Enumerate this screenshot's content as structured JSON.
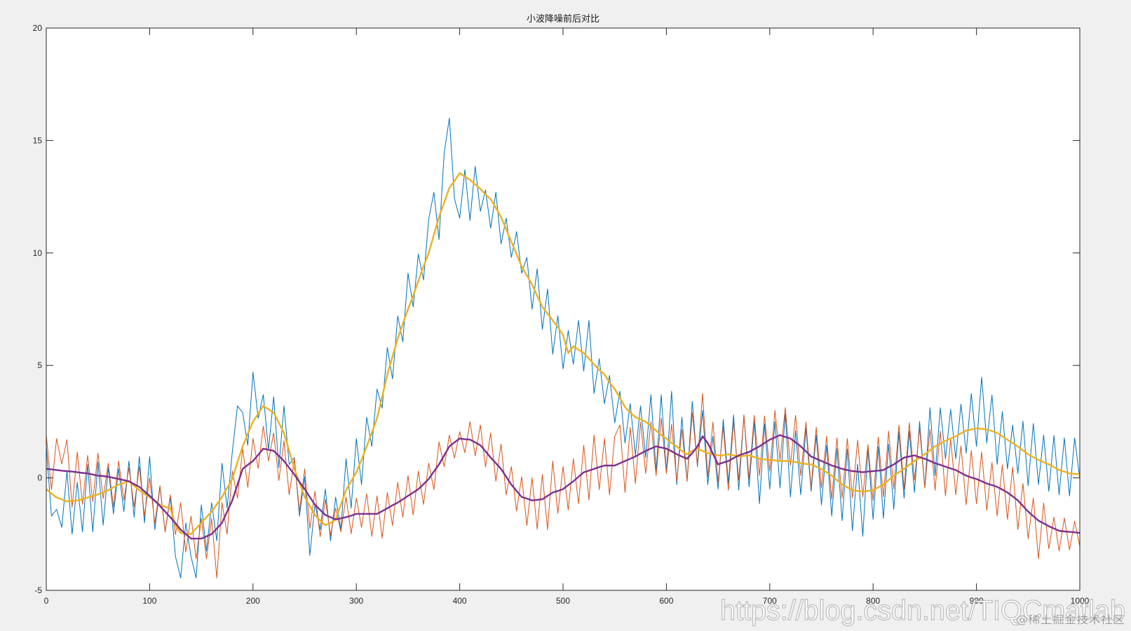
{
  "chart_data": {
    "type": "line",
    "title": "小波降噪前后对比",
    "xlabel": "",
    "ylabel": "",
    "xlim": [
      0,
      1000
    ],
    "ylim": [
      -5,
      20
    ],
    "grid": false,
    "xticks": [
      0,
      100,
      200,
      300,
      400,
      500,
      600,
      700,
      800,
      900,
      1000
    ],
    "xtick_labels": [
      "0",
      "100",
      "200",
      "300",
      "400",
      "500",
      "600",
      "700",
      "800",
      "900",
      "1000"
    ],
    "yticks": [
      -5,
      0,
      5,
      10,
      15,
      20
    ],
    "ytick_labels": [
      "-5",
      "0",
      "5",
      "10",
      "15",
      "20"
    ],
    "x": [
      0,
      5,
      10,
      15,
      20,
      25,
      30,
      35,
      40,
      45,
      50,
      55,
      60,
      65,
      70,
      75,
      80,
      85,
      90,
      95,
      100,
      105,
      110,
      115,
      120,
      125,
      130,
      135,
      140,
      145,
      150,
      155,
      160,
      165,
      170,
      175,
      180,
      185,
      190,
      195,
      200,
      205,
      210,
      215,
      220,
      225,
      230,
      235,
      240,
      245,
      250,
      255,
      260,
      265,
      270,
      275,
      280,
      285,
      290,
      295,
      300,
      305,
      310,
      315,
      320,
      325,
      330,
      335,
      340,
      345,
      350,
      355,
      360,
      365,
      370,
      375,
      380,
      385,
      390,
      395,
      400,
      405,
      410,
      415,
      420,
      425,
      430,
      435,
      440,
      445,
      450,
      455,
      460,
      465,
      470,
      475,
      480,
      485,
      490,
      495,
      500,
      505,
      510,
      515,
      520,
      525,
      530,
      535,
      540,
      545,
      550,
      555,
      560,
      565,
      570,
      575,
      580,
      585,
      590,
      595,
      600,
      605,
      610,
      615,
      620,
      625,
      630,
      635,
      640,
      645,
      650,
      655,
      660,
      665,
      670,
      675,
      680,
      685,
      690,
      695,
      700,
      705,
      710,
      715,
      720,
      725,
      730,
      735,
      740,
      745,
      750,
      755,
      760,
      765,
      770,
      775,
      780,
      785,
      790,
      795,
      800,
      805,
      810,
      815,
      820,
      825,
      830,
      835,
      840,
      845,
      850,
      855,
      860,
      865,
      870,
      875,
      880,
      885,
      890,
      895,
      900,
      905,
      910,
      915,
      920,
      925,
      930,
      935,
      940,
      945,
      950,
      955,
      960,
      965,
      970,
      975,
      980,
      985,
      990,
      995,
      1000
    ],
    "series": [
      {
        "color": "#0072BD",
        "values": [
          1.4,
          -1.7,
          -1.4,
          -2.2,
          0.3,
          -2.5,
          -0.2,
          -2.4,
          0.6,
          -2.4,
          0.7,
          -2.1,
          0.45,
          -1.6,
          0.4,
          -1.5,
          0.75,
          -1.75,
          0.95,
          -2.0,
          0.95,
          -2.3,
          -0.4,
          -2.4,
          -0.85,
          -3.5,
          -4.45,
          -2.0,
          -3.5,
          -4.45,
          -1.2,
          -3.25,
          -1.1,
          -2.8,
          0.65,
          -1.35,
          1.15,
          3.2,
          2.9,
          1.45,
          4.7,
          2.65,
          3.7,
          1.25,
          3.6,
          0.45,
          3.2,
          0.6,
          0.9,
          -1.7,
          0.05,
          -3.45,
          -1.15,
          -2.3,
          -0.5,
          -2.8,
          -0.85,
          -2.3,
          0.85,
          -1.35,
          1.75,
          -0.3,
          2.7,
          1.4,
          3.95,
          3.1,
          5.8,
          4.4,
          7.2,
          6.05,
          9.1,
          7.6,
          9.95,
          8.8,
          11.5,
          12.7,
          10.6,
          14.45,
          16.0,
          12.4,
          11.55,
          13.7,
          11.45,
          13.85,
          11.85,
          12.8,
          11.1,
          12.7,
          10.4,
          11.55,
          9.8,
          10.95,
          9.1,
          9.8,
          7.5,
          9.3,
          6.6,
          8.4,
          5.5,
          7.2,
          4.85,
          6.55,
          5.05,
          7.0,
          4.75,
          7.0,
          3.75,
          5.3,
          3.3,
          4.55,
          2.45,
          3.85,
          1.55,
          3.3,
          1.0,
          3.2,
          0.9,
          3.7,
          0.3,
          3.7,
          0.25,
          3.85,
          -0.3,
          2.7,
          -0.15,
          3.4,
          0.5,
          3.0,
          -0.3,
          1.85,
          -0.5,
          2.6,
          -0.25,
          2.8,
          -0.55,
          2.8,
          -0.4,
          2.5,
          -1.15,
          2.4,
          -0.5,
          2.5,
          -0.45,
          2.85,
          -0.85,
          2.1,
          -0.75,
          2.2,
          -0.6,
          1.9,
          -1.2,
          1.45,
          -1.7,
          1.3,
          -1.9,
          1.28,
          -2.35,
          0.62,
          -2.6,
          1.32,
          -1.85,
          1.38,
          -1.8,
          1.5,
          -1.4,
          2.05,
          -0.9,
          2.08,
          -0.65,
          2.5,
          -0.45,
          3.12,
          0.1,
          3.12,
          0.85,
          3.05,
          0.85,
          3.28,
          1.1,
          3.75,
          1.4,
          4.48,
          1.55,
          3.68,
          0.6,
          2.95,
          0.4,
          2.35,
          0.2,
          2.52,
          -0.35,
          2.42,
          -0.3,
          1.9,
          -0.6,
          1.88,
          -0.75,
          1.78,
          -0.8,
          1.78,
          -0.05
        ]
      },
      {
        "color": "#D95319",
        "values": [
          1.9,
          -0.52,
          1.75,
          0.62,
          1.7,
          -1.32,
          1.15,
          -1.18,
          1.0,
          -1.05,
          1.1,
          -0.92,
          0.65,
          -1.3,
          0.75,
          -1.0,
          0.45,
          -1.28,
          0.5,
          -1.7,
          0.0,
          -2.02,
          -0.35,
          -2.4,
          -0.75,
          -2.52,
          -1.1,
          -3.3,
          -1.7,
          -3.6,
          -1.8,
          -3.6,
          -1.8,
          -4.45,
          -1.1,
          -2.5,
          0.3,
          -0.9,
          1.3,
          -0.42,
          1.75,
          0.42,
          2.3,
          0.75,
          2.0,
          -0.12,
          1.65,
          -0.75,
          0.85,
          -1.48,
          0.4,
          -2.25,
          -0.6,
          -2.62,
          -0.95,
          -2.55,
          -1.35,
          -2.4,
          -0.85,
          -2.48,
          -0.9,
          -2.2,
          -0.7,
          -2.6,
          -0.8,
          -2.68,
          -0.65,
          -2.12,
          -0.2,
          -1.75,
          0.1,
          -1.65,
          0.3,
          -1.18,
          0.65,
          -0.52,
          1.6,
          0.5,
          1.9,
          0.88,
          2.05,
          1.12,
          2.5,
          0.98,
          2.35,
          0.48,
          2.0,
          -0.15,
          1.5,
          -0.75,
          0.5,
          -1.48,
          0.05,
          -2.12,
          0.0,
          -2.28,
          0.15,
          -2.3,
          0.75,
          -1.58,
          0.5,
          -1.42,
          0.85,
          -1.15,
          1.45,
          -0.98,
          1.9,
          -0.52,
          1.75,
          -0.75,
          1.85,
          2.35,
          -0.65,
          2.25,
          -0.25,
          2.48,
          0.2,
          2.5,
          0.1,
          2.65,
          0.2,
          2.38,
          -0.15,
          2.15,
          -0.15,
          2.9,
          0.6,
          3.75,
          0.05,
          2.48,
          -0.2,
          2.28,
          -0.55,
          2.48,
          -0.1,
          2.78,
          -0.05,
          2.78,
          0.1,
          2.75,
          0.3,
          3.0,
          0.8,
          3.12,
          0.55,
          2.78,
          0.1,
          2.48,
          -0.45,
          2.25,
          -0.45,
          1.85,
          -0.95,
          1.78,
          -0.9,
          1.75,
          -0.9,
          1.68,
          -0.85,
          1.48,
          -1.0,
          1.82,
          -0.85,
          2.08,
          -0.5,
          2.35,
          -0.5,
          2.45,
          -0.1,
          2.22,
          -0.45,
          2.15,
          -0.55,
          2.08,
          -0.8,
          1.72,
          -0.75,
          1.42,
          -1.2,
          1.22,
          -1.15,
          1.15,
          -1.45,
          0.68,
          -1.7,
          0.58,
          -1.85,
          0.48,
          -2.3,
          -0.25,
          -2.7,
          -0.9,
          -3.6,
          -1.12,
          -3.15,
          -1.75,
          -3.25,
          -1.78,
          -3.2,
          -1.92,
          -3.05
        ]
      },
      {
        "color": "#EDB120",
        "values": [
          -0.5,
          -0.7,
          -0.87,
          -0.95,
          -1.05,
          -1.03,
          -1.0,
          -0.95,
          -0.87,
          -0.8,
          -0.74,
          -0.65,
          -0.55,
          -0.42,
          -0.3,
          -0.22,
          -0.15,
          -0.35,
          -0.55,
          -0.7,
          -0.85,
          -1.0,
          -1.2,
          -1.28,
          -1.35,
          -2.1,
          -2.45,
          -2.48,
          -2.5,
          -2.25,
          -2.0,
          -1.75,
          -1.5,
          -1.18,
          -0.85,
          -0.45,
          -0.05,
          0.7,
          1.4,
          1.95,
          2.5,
          2.85,
          3.2,
          3.05,
          2.9,
          2.45,
          2.0,
          1.2,
          0.4,
          -0.2,
          -0.85,
          -1.25,
          -1.65,
          -1.9,
          -2.1,
          -2.0,
          -1.85,
          -1.2,
          -0.55,
          -0.15,
          0.25,
          0.8,
          1.4,
          2.0,
          2.65,
          3.6,
          4.6,
          5.4,
          6.2,
          6.85,
          7.5,
          8.1,
          8.75,
          9.4,
          10.0,
          10.8,
          11.6,
          12.25,
          12.9,
          13.2,
          13.55,
          13.4,
          13.25,
          13.05,
          12.85,
          12.6,
          12.4,
          12.0,
          11.6,
          11.05,
          10.5,
          9.95,
          9.4,
          9.0,
          8.6,
          8.1,
          7.6,
          7.3,
          7.0,
          6.7,
          6.35,
          5.55,
          5.85,
          5.7,
          5.55,
          5.3,
          5.05,
          4.8,
          4.6,
          4.25,
          3.95,
          3.55,
          3.15,
          2.9,
          2.7,
          2.6,
          2.5,
          2.3,
          2.1,
          1.9,
          1.75,
          1.55,
          1.4,
          1.2,
          1.05,
          1.2,
          1.3,
          1.2,
          1.1,
          1.05,
          1.0,
          1.0,
          1.05,
          1.0,
          0.95,
          0.98,
          1.0,
          0.93,
          0.85,
          0.82,
          0.8,
          0.78,
          0.75,
          0.75,
          0.75,
          0.7,
          0.65,
          0.62,
          0.6,
          0.5,
          0.4,
          0.25,
          0.1,
          -0.1,
          -0.3,
          -0.42,
          -0.55,
          -0.58,
          -0.6,
          -0.58,
          -0.55,
          -0.42,
          -0.3,
          -0.1,
          0.1,
          0.25,
          0.4,
          0.58,
          0.75,
          0.9,
          1.05,
          1.22,
          1.4,
          1.52,
          1.65,
          1.75,
          1.85,
          1.98,
          2.1,
          2.15,
          2.2,
          2.18,
          2.15,
          2.08,
          2.0,
          1.85,
          1.7,
          1.55,
          1.4,
          1.22,
          1.05,
          0.92,
          0.8,
          0.7,
          0.6,
          0.48,
          0.35,
          0.28,
          0.2,
          0.18,
          0.15
        ]
      },
      {
        "color": "#7E2F8E",
        "values": [
          0.4,
          0.38,
          0.35,
          0.32,
          0.3,
          0.28,
          0.25,
          0.22,
          0.2,
          0.15,
          0.1,
          0.08,
          0.05,
          0.0,
          -0.05,
          -0.1,
          -0.15,
          -0.28,
          -0.4,
          -0.6,
          -0.8,
          -1.02,
          -1.25,
          -1.5,
          -1.75,
          -2.02,
          -2.3,
          -2.5,
          -2.7,
          -2.7,
          -2.7,
          -2.6,
          -2.5,
          -2.25,
          -2.0,
          -1.5,
          -1.0,
          -0.3,
          0.4,
          0.58,
          0.75,
          1.02,
          1.3,
          1.25,
          1.2,
          0.98,
          0.75,
          0.45,
          0.15,
          -0.18,
          -0.5,
          -0.85,
          -1.2,
          -1.42,
          -1.65,
          -1.75,
          -1.85,
          -1.8,
          -1.75,
          -1.68,
          -1.6,
          -1.6,
          -1.6,
          -1.6,
          -1.6,
          -1.48,
          -1.35,
          -1.22,
          -1.1,
          -0.95,
          -0.8,
          -0.65,
          -0.5,
          -0.28,
          -0.05,
          0.28,
          0.6,
          1.0,
          1.4,
          1.58,
          1.75,
          1.72,
          1.7,
          1.58,
          1.45,
          1.18,
          0.9,
          0.65,
          0.4,
          0.05,
          -0.3,
          -0.58,
          -0.85,
          -0.92,
          -1.0,
          -0.98,
          -0.95,
          -0.8,
          -0.65,
          -0.58,
          -0.5,
          -0.32,
          -0.15,
          0.05,
          0.25,
          0.32,
          0.4,
          0.48,
          0.55,
          0.55,
          0.55,
          0.65,
          0.75,
          0.85,
          0.95,
          1.08,
          1.2,
          1.3,
          1.4,
          1.35,
          1.3,
          1.18,
          1.05,
          0.95,
          0.85,
          1.1,
          1.4,
          1.85,
          1.55,
          1.08,
          0.6,
          0.68,
          0.75,
          0.88,
          1.0,
          1.08,
          1.15,
          1.28,
          1.4,
          1.55,
          1.7,
          1.8,
          1.9,
          1.82,
          1.75,
          1.58,
          1.4,
          1.18,
          0.95,
          0.85,
          0.75,
          0.65,
          0.55,
          0.48,
          0.4,
          0.35,
          0.3,
          0.28,
          0.25,
          0.28,
          0.3,
          0.32,
          0.35,
          0.48,
          0.6,
          0.75,
          0.9,
          0.95,
          1.0,
          0.92,
          0.85,
          0.75,
          0.65,
          0.58,
          0.5,
          0.42,
          0.35,
          0.22,
          0.1,
          0.02,
          -0.05,
          -0.15,
          -0.25,
          -0.32,
          -0.4,
          -0.52,
          -0.65,
          -0.82,
          -1.0,
          -1.25,
          -1.5,
          -1.7,
          -1.9,
          -2.02,
          -2.15,
          -2.25,
          -2.35,
          -2.38,
          -2.4,
          -2.42,
          -2.45
        ]
      }
    ]
  },
  "watermark": {
    "url": "https://blog.csdn.net/TIQCmatlab",
    "site": "@稀土掘金技术社区"
  }
}
